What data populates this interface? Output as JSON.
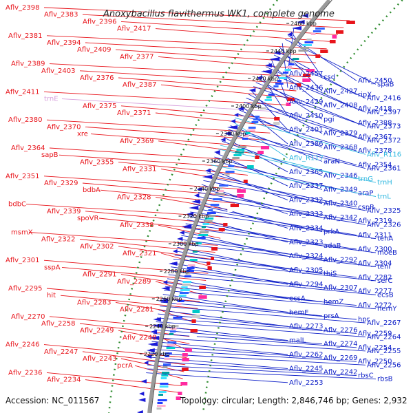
{
  "title": "Anoxybacillus flavithermus WK1, complete genome",
  "footer": {
    "accession": "Accession: NC_011567",
    "summary": "Topology: circular; Length: 2,846,746 bp; Genes: 2,932"
  },
  "colors": {
    "forward_label": "#e8141b",
    "reverse_label": "#1021c8",
    "rna_label": "#30b8e0",
    "trna_label": "#d7a0dc",
    "backbone": "#9a9a9a",
    "gc_dots": "#2e8b2e"
  },
  "ticks": [
    "2460 kbp",
    "2440 kbp",
    "2420 kbp",
    "2400 kbp",
    "2380 kbp",
    "2360 kbp",
    "2340 kbp",
    "2320 kbp",
    "2300 kbp",
    "2280 kbp",
    "2260 kbp",
    "2240 kbp",
    "2220 kbp"
  ],
  "left_labels": [
    {
      "t": "Aflv_2398",
      "c": "f"
    },
    {
      "t": "Aflv_2383",
      "c": "f"
    },
    {
      "t": "Aflv_2396",
      "c": "f"
    },
    {
      "t": "Aflv_2417",
      "c": "f"
    },
    {
      "t": "Aflv_2381",
      "c": "f"
    },
    {
      "t": "Aflv_2394",
      "c": "f"
    },
    {
      "t": "Aflv_2409",
      "c": "f"
    },
    {
      "t": "Aflv_2377",
      "c": "f"
    },
    {
      "t": "Aflv_2389",
      "c": "f"
    },
    {
      "t": "Aflv_2403",
      "c": "f"
    },
    {
      "t": "Aflv_2376",
      "c": "f"
    },
    {
      "t": "Aflv_2387",
      "c": "f"
    },
    {
      "t": "Aflv_2411",
      "c": "f"
    },
    {
      "t": "trnE",
      "c": "t"
    },
    {
      "t": "Aflv_2375",
      "c": "f"
    },
    {
      "t": "Aflv_2371",
      "c": "f"
    },
    {
      "t": "Aflv_2380",
      "c": "f"
    },
    {
      "t": "Aflv_2370",
      "c": "f"
    },
    {
      "t": "xre",
      "c": "f"
    },
    {
      "t": "Aflv_2369",
      "c": "f"
    },
    {
      "t": "Aflv_2364",
      "c": "f"
    },
    {
      "t": "sapB",
      "c": "f"
    },
    {
      "t": "Aflv_2355",
      "c": "f"
    },
    {
      "t": "Aflv_2331",
      "c": "f"
    },
    {
      "t": "Aflv_2351",
      "c": "f"
    },
    {
      "t": "Aflv_2329",
      "c": "f"
    },
    {
      "t": "bdbA",
      "c": "f"
    },
    {
      "t": "Aflv_2328",
      "c": "f"
    },
    {
      "t": "bdbC",
      "c": "f"
    },
    {
      "t": "Aflv_2339",
      "c": "f"
    },
    {
      "t": "spoVR",
      "c": "f"
    },
    {
      "t": "Aflv_2338",
      "c": "f"
    },
    {
      "t": "msmX",
      "c": "f"
    },
    {
      "t": "Aflv_2322",
      "c": "f"
    },
    {
      "t": "Aflv_2302",
      "c": "f"
    },
    {
      "t": "Aflv_2321",
      "c": "f"
    },
    {
      "t": "Aflv_2301",
      "c": "f"
    },
    {
      "t": "sspA",
      "c": "f"
    },
    {
      "t": "Aflv_2291",
      "c": "f"
    },
    {
      "t": "Aflv_2289",
      "c": "f"
    },
    {
      "t": "Aflv_2295",
      "c": "f"
    },
    {
      "t": "hit",
      "c": "f"
    },
    {
      "t": "Aflv_2283",
      "c": "f"
    },
    {
      "t": "Aflv_2281",
      "c": "f"
    },
    {
      "t": "Aflv_2270",
      "c": "f"
    },
    {
      "t": "Aflv_2258",
      "c": "f"
    },
    {
      "t": "Aflv_2249",
      "c": "f"
    },
    {
      "t": "Aflv_2248",
      "c": "f"
    },
    {
      "t": "Aflv_2246",
      "c": "f"
    },
    {
      "t": "Aflv_2247",
      "c": "f"
    },
    {
      "t": "Aflv_2243",
      "c": "f"
    },
    {
      "t": "pcrA",
      "c": "f"
    },
    {
      "t": "Aflv_2236",
      "c": "f"
    },
    {
      "t": "Aflv_2234",
      "c": "f"
    }
  ],
  "right_labels": [
    {
      "t": "Aflv_2457",
      "c": "r"
    },
    {
      "t": "csd",
      "c": "r"
    },
    {
      "t": "Aflv_2450",
      "c": "r"
    },
    {
      "t": "spaB",
      "c": "r"
    },
    {
      "t": "Aflv_2436",
      "c": "r"
    },
    {
      "t": "Aflv_2427",
      "c": "r"
    },
    {
      "t": "ripX",
      "c": "r"
    },
    {
      "t": "Aflv_2416",
      "c": "r"
    },
    {
      "t": "Aflv_2429",
      "c": "r"
    },
    {
      "t": "Aflv_2408",
      "c": "r"
    },
    {
      "t": "Aflv_2418",
      "c": "r"
    },
    {
      "t": "Aflv_2397",
      "c": "r"
    },
    {
      "t": "Aflv_2410",
      "c": "r"
    },
    {
      "t": "pgi",
      "c": "r"
    },
    {
      "t": "Aflv_2388",
      "c": "r"
    },
    {
      "t": "Aflv_2373",
      "c": "r"
    },
    {
      "t": "Aflv_2401",
      "c": "r"
    },
    {
      "t": "Aflv_2379",
      "c": "r"
    },
    {
      "t": "Aflv_2367",
      "c": "r"
    },
    {
      "t": "Aflv_2372",
      "c": "r"
    },
    {
      "t": "Aflv_2386",
      "c": "r"
    },
    {
      "t": "Aflv_2368",
      "c": "r"
    },
    {
      "t": "Aflv_2378",
      "c": "r"
    },
    {
      "t": "Aflv_R116",
      "c": "n"
    },
    {
      "t": "Aflv_R117",
      "c": "n"
    },
    {
      "t": "araN",
      "c": "r"
    },
    {
      "t": "Aflv_2354",
      "c": "r"
    },
    {
      "t": "Aflv_2361",
      "c": "r"
    },
    {
      "t": "Aflv_2365",
      "c": "r"
    },
    {
      "t": "Aflv_2346",
      "c": "r"
    },
    {
      "t": "trnG",
      "c": "n"
    },
    {
      "t": "trnH",
      "c": "n"
    },
    {
      "t": "Aflv_2337",
      "c": "r"
    },
    {
      "t": "Aflv_2349",
      "c": "r"
    },
    {
      "t": "araP",
      "c": "r"
    },
    {
      "t": "trnL",
      "c": "n"
    },
    {
      "t": "Aflv_2332",
      "c": "r"
    },
    {
      "t": "Aflv_2340",
      "c": "r"
    },
    {
      "t": "cspR",
      "c": "r"
    },
    {
      "t": "Aflv_2325",
      "c": "r"
    },
    {
      "t": "Aflv_2333",
      "c": "r"
    },
    {
      "t": "Aflv_2342",
      "c": "r"
    },
    {
      "t": "Aflv_2319",
      "c": "r"
    },
    {
      "t": "Aflv_2326",
      "c": "r"
    },
    {
      "t": "Aflv_2334",
      "c": "r"
    },
    {
      "t": "prkA",
      "c": "r"
    },
    {
      "t": "Aflv_2311",
      "c": "r"
    },
    {
      "t": "tenA",
      "c": "r"
    },
    {
      "t": "Aflv_2323",
      "c": "r"
    },
    {
      "t": "adaB",
      "c": "r"
    },
    {
      "t": "Aflv_2300",
      "c": "r"
    },
    {
      "t": "moeB",
      "c": "r"
    },
    {
      "t": "Aflv_2324",
      "c": "r"
    },
    {
      "t": "Aflv_2292",
      "c": "r"
    },
    {
      "t": "Aflv_2304",
      "c": "r"
    },
    {
      "t": "tenI",
      "c": "r"
    },
    {
      "t": "Aflv_2305",
      "c": "r"
    },
    {
      "t": "thiS",
      "c": "r"
    },
    {
      "t": "Aflv_2282",
      "c": "r"
    },
    {
      "t": "serC",
      "c": "r"
    },
    {
      "t": "Aflv_2294",
      "c": "r"
    },
    {
      "t": "Aflv_2307",
      "c": "r"
    },
    {
      "t": "Aflv_2277",
      "c": "r"
    },
    {
      "t": "ecsB",
      "c": "r"
    },
    {
      "t": "ecsA",
      "c": "r"
    },
    {
      "t": "hemZ",
      "c": "r"
    },
    {
      "t": "Aflv_2272",
      "c": "r"
    },
    {
      "t": "hemY",
      "c": "r"
    },
    {
      "t": "hemE",
      "c": "r"
    },
    {
      "t": "prsA",
      "c": "r"
    },
    {
      "t": "hpr",
      "c": "r"
    },
    {
      "t": "Aflv_2267",
      "c": "r"
    },
    {
      "t": "Aflv_2273",
      "c": "r"
    },
    {
      "t": "Aflv_2276",
      "c": "r"
    },
    {
      "t": "Aflv_2259",
      "c": "r"
    },
    {
      "t": "Aflv_2264",
      "c": "r"
    },
    {
      "t": "malL",
      "c": "r"
    },
    {
      "t": "Aflv_2274",
      "c": "r"
    },
    {
      "t": "Aflv_2254",
      "c": "r"
    },
    {
      "t": "Aflv_2255",
      "c": "r"
    },
    {
      "t": "Aflv_2262",
      "c": "r"
    },
    {
      "t": "Aflv_2269",
      "c": "r"
    },
    {
      "t": "Aflv_2250",
      "c": "r"
    },
    {
      "t": "Aflv_2256",
      "c": "r"
    },
    {
      "t": "Aflv_2245",
      "c": "r"
    },
    {
      "t": "Aflv_2242",
      "c": "r"
    },
    {
      "t": "rbsC",
      "c": "r"
    },
    {
      "t": "rbsB",
      "c": "r"
    },
    {
      "t": "Aflv_2253",
      "c": "r"
    }
  ]
}
